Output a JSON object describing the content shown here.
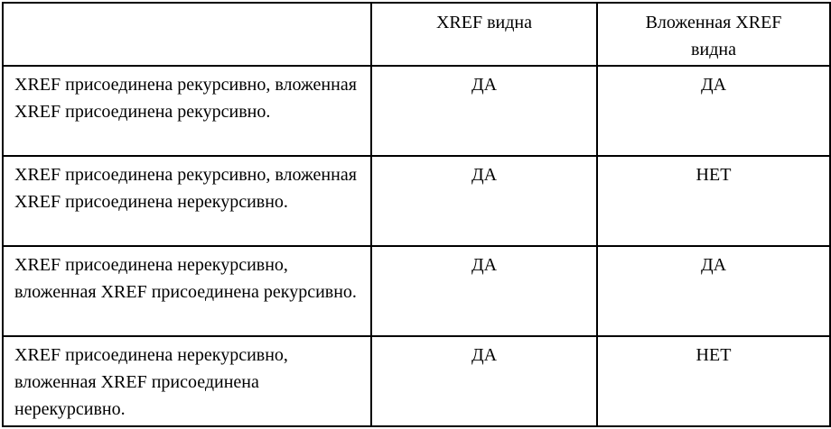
{
  "table": {
    "colors": {
      "background": "#ffffff",
      "border": "#000000",
      "text": "#000000"
    },
    "headers": {
      "description": "",
      "xref_visible": "XREF видна",
      "nested_xref_visible": "Вложенная XREF видна"
    },
    "rows": [
      {
        "description": "XREF присоединена рекурсивно, вложенная XREF присоединена рекурсивно.",
        "xref_visible": "ДА",
        "nested_xref_visible": "ДА"
      },
      {
        "description": "XREF присоединена рекурсивно, вложенная XREF присоединена нерекурсивно.",
        "xref_visible": "ДА",
        "nested_xref_visible": "НЕТ"
      },
      {
        "description": "XREF присоединена нерекурсивно, вложенная XREF присоединена рекурсивно.",
        "xref_visible": "ДА",
        "nested_xref_visible": "ДА"
      },
      {
        "description": "XREF присоединена нерекурсивно, вложенная XREF присоединена нерекурсивно.",
        "xref_visible": "ДА",
        "nested_xref_visible": "НЕТ"
      }
    ]
  }
}
